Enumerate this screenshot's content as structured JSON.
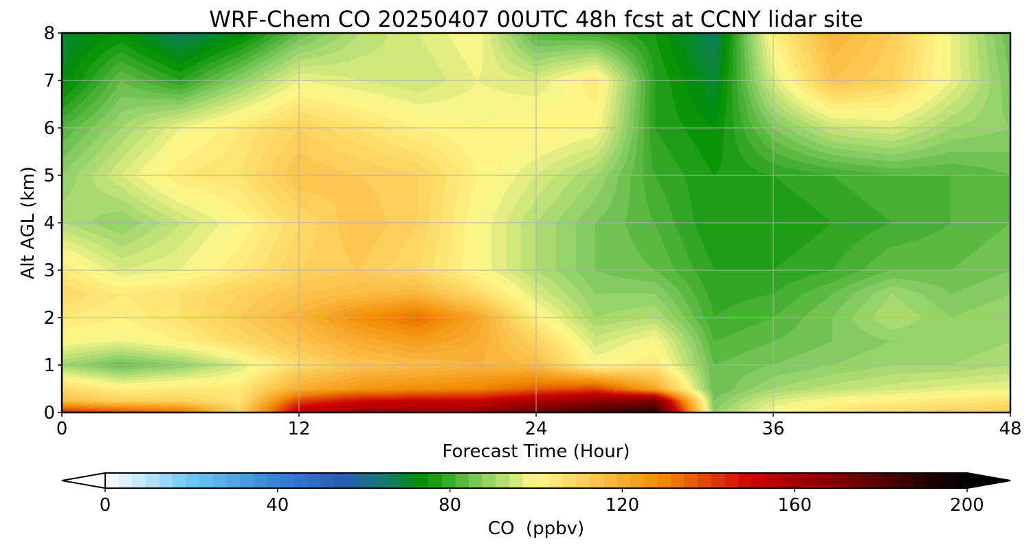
{
  "chart_data": {
    "type": "heatmap",
    "title": "WRF-Chem CO  20250407 00UTC 48h fcst at CCNY lidar site",
    "xlabel": "Forecast Time (Hour)",
    "ylabel": "Alt AGL (km)",
    "xlim": [
      0,
      48
    ],
    "ylim": [
      0,
      8
    ],
    "x_ticks": [
      0,
      12,
      24,
      36,
      48
    ],
    "y_ticks": [
      0,
      1,
      2,
      3,
      4,
      5,
      6,
      7,
      8
    ],
    "grid": true,
    "colorbar": {
      "label": "CO  (ppbv)",
      "ticks": [
        0,
        40,
        80,
        120,
        160,
        200
      ],
      "range": [
        0,
        200
      ],
      "extend": "both",
      "orientation": "horizontal",
      "stops": [
        {
          "value": 0,
          "color": "#ffffff"
        },
        {
          "value": 20,
          "color": "#6ec6f5"
        },
        {
          "value": 40,
          "color": "#3b7fd6"
        },
        {
          "value": 55,
          "color": "#2a5bb5"
        },
        {
          "value": 65,
          "color": "#157a6e"
        },
        {
          "value": 74,
          "color": "#009000"
        },
        {
          "value": 88,
          "color": "#8ed068"
        },
        {
          "value": 100,
          "color": "#fff88a"
        },
        {
          "value": 115,
          "color": "#fbc048"
        },
        {
          "value": 130,
          "color": "#f08800"
        },
        {
          "value": 150,
          "color": "#cc0000"
        },
        {
          "value": 175,
          "color": "#6a0000"
        },
        {
          "value": 200,
          "color": "#000000"
        }
      ]
    },
    "x": [
      0,
      3,
      6,
      9,
      12,
      15,
      18,
      21,
      24,
      27,
      30,
      33,
      36,
      39,
      42,
      45,
      48
    ],
    "y": [
      0,
      0.25,
      0.5,
      1,
      1.5,
      2,
      2.5,
      3,
      4,
      5,
      6,
      7,
      8
    ],
    "z": [
      [
        145,
        140,
        135,
        110,
        155,
        165,
        165,
        165,
        175,
        185,
        190,
        88,
        100,
        105,
        108,
        110,
        112
      ],
      [
        115,
        110,
        110,
        105,
        140,
        148,
        150,
        150,
        158,
        165,
        170,
        86,
        96,
        100,
        102,
        104,
        106
      ],
      [
        108,
        102,
        104,
        104,
        120,
        126,
        128,
        130,
        136,
        140,
        122,
        84,
        90,
        93,
        95,
        97,
        98
      ],
      [
        90,
        84,
        88,
        96,
        108,
        114,
        116,
        118,
        116,
        100,
        104,
        84,
        86,
        88,
        90,
        90,
        92
      ],
      [
        100,
        98,
        102,
        108,
        114,
        120,
        124,
        120,
        110,
        95,
        100,
        82,
        84,
        86,
        88,
        88,
        90
      ],
      [
        104,
        102,
        106,
        112,
        118,
        128,
        134,
        122,
        102,
        90,
        92,
        80,
        82,
        86,
        92,
        88,
        90
      ],
      [
        108,
        104,
        106,
        110,
        114,
        116,
        118,
        108,
        96,
        88,
        88,
        79,
        80,
        84,
        90,
        86,
        88
      ],
      [
        104,
        96,
        98,
        104,
        110,
        112,
        108,
        100,
        92,
        86,
        84,
        78,
        78,
        80,
        84,
        84,
        86
      ],
      [
        92,
        88,
        94,
        100,
        108,
        114,
        110,
        100,
        92,
        86,
        82,
        76,
        76,
        78,
        80,
        82,
        84
      ],
      [
        88,
        96,
        104,
        106,
        114,
        112,
        110,
        102,
        96,
        90,
        80,
        76,
        78,
        80,
        82,
        82,
        84
      ],
      [
        82,
        90,
        98,
        104,
        110,
        106,
        102,
        100,
        102,
        100,
        78,
        74,
        86,
        94,
        96,
        90,
        88
      ],
      [
        72,
        84,
        78,
        88,
        98,
        96,
        94,
        98,
        96,
        104,
        78,
        70,
        96,
        114,
        110,
        98,
        86
      ],
      [
        70,
        74,
        66,
        72,
        84,
        92,
        96,
        100,
        82,
        80,
        76,
        66,
        102,
        118,
        112,
        98,
        84
      ]
    ]
  }
}
